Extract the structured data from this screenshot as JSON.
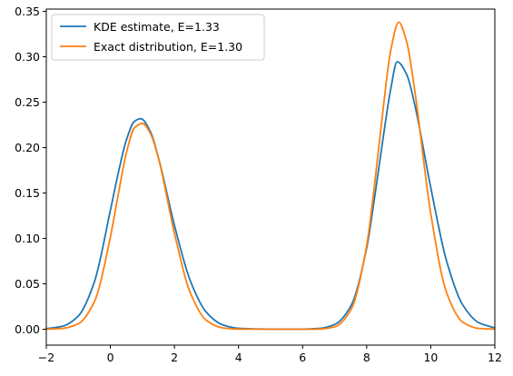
{
  "chart_data": {
    "type": "line",
    "title": "",
    "xlabel": "",
    "ylabel": "",
    "xlim": [
      -2,
      12
    ],
    "ylim": [
      -0.0175,
      0.3525
    ],
    "xticks": [
      -2,
      0,
      2,
      4,
      6,
      8,
      10,
      12
    ],
    "xtick_labels": [
      "−2",
      "0",
      "2",
      "4",
      "6",
      "8",
      "10",
      "12"
    ],
    "yticks": [
      0.0,
      0.05,
      0.1,
      0.15,
      0.2,
      0.25,
      0.3,
      0.35
    ],
    "ytick_labels": [
      "0.00",
      "0.05",
      "0.10",
      "0.15",
      "0.20",
      "0.25",
      "0.30",
      "0.35"
    ],
    "grid": false,
    "legend_position": "top-left",
    "series": [
      {
        "name": "KDE estimate, E=1.33",
        "color": "#1f77b4",
        "x": [
          -2.0,
          -1.5,
          -1.0,
          -0.5,
          0.0,
          0.25,
          0.5,
          0.75,
          0.95,
          1.25,
          1.5,
          2.0,
          2.5,
          3.0,
          3.5,
          4.0,
          5.0,
          6.0,
          6.5,
          7.0,
          7.5,
          8.0,
          8.25,
          8.5,
          8.75,
          8.95,
          9.25,
          9.5,
          10.0,
          10.5,
          11.0,
          11.5,
          12.0
        ],
        "y": [
          0.0006,
          0.0032,
          0.0146,
          0.0521,
          0.1309,
          0.1726,
          0.2084,
          0.2289,
          0.2318,
          0.2175,
          0.1887,
          0.1144,
          0.0528,
          0.0185,
          0.0049,
          0.001,
          0.0001,
          0.0001,
          0.0008,
          0.0052,
          0.0251,
          0.0895,
          0.1458,
          0.2075,
          0.2643,
          0.2945,
          0.2804,
          0.2472,
          0.1559,
          0.0743,
          0.0267,
          0.0072,
          0.0015
        ]
      },
      {
        "name": "Exact distribution, E=1.30",
        "color": "#ff7f0e",
        "x": [
          -2.0,
          -1.5,
          -1.0,
          -0.5,
          0.0,
          0.25,
          0.5,
          0.75,
          1.0,
          1.25,
          1.5,
          2.0,
          2.5,
          3.0,
          3.5,
          4.0,
          5.0,
          6.0,
          6.5,
          7.0,
          7.5,
          8.0,
          8.25,
          8.5,
          8.75,
          9.0,
          9.25,
          9.5,
          10.0,
          10.5,
          11.0,
          11.5,
          12.0
        ],
        "y": [
          0.0001,
          0.0009,
          0.0061,
          0.0303,
          0.1016,
          0.1493,
          0.1941,
          0.2217,
          0.2267,
          0.2155,
          0.1882,
          0.1056,
          0.0397,
          0.0096,
          0.0015,
          0.0002,
          0.0,
          0.0,
          0.0002,
          0.0026,
          0.021,
          0.0922,
          0.1605,
          0.2384,
          0.3068,
          0.338,
          0.3163,
          0.2628,
          0.1272,
          0.0397,
          0.0078,
          0.0009,
          0.0001
        ]
      }
    ]
  }
}
